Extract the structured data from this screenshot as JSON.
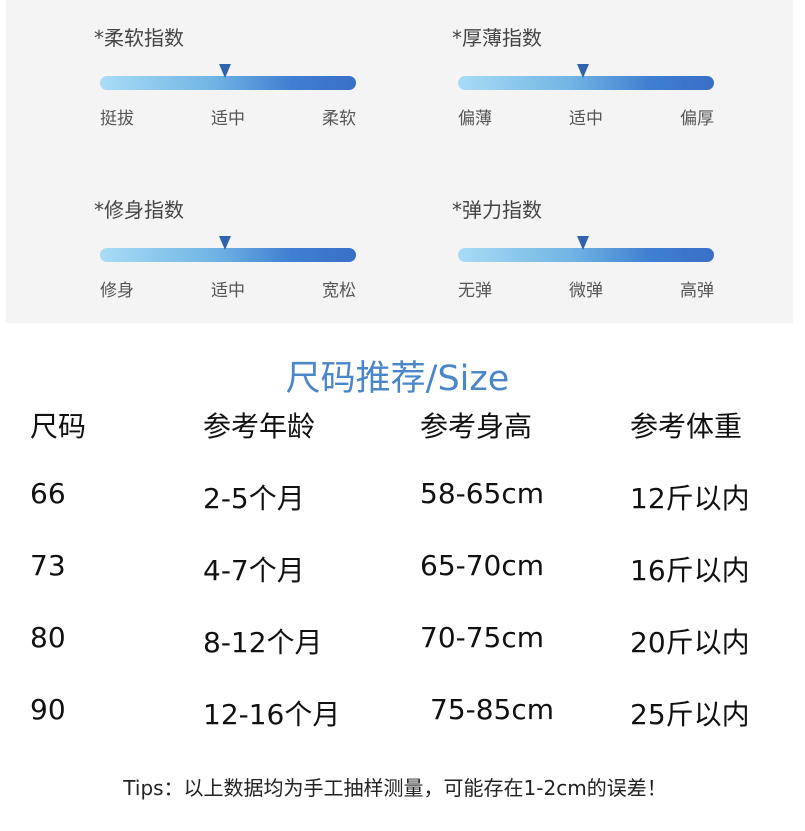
{
  "indices": [
    {
      "title": "*柔软指数",
      "labels": [
        "挺拔",
        "适中",
        "柔软"
      ],
      "pointer_level": 0.49
    },
    {
      "title": "*厚薄指数",
      "labels": [
        "偏薄",
        "适中",
        "偏厚"
      ],
      "pointer_level": 0.49
    },
    {
      "title": "*修身指数",
      "labels": [
        "修身",
        "适中",
        "宽松"
      ],
      "pointer_level": 0.49
    },
    {
      "title": "*弹力指数",
      "labels": [
        "无弹",
        "微弹",
        "高弹"
      ],
      "pointer_level": 0.49
    }
  ],
  "size_table": {
    "title": "尺码推荐/Size",
    "headers": [
      "尺码",
      "参考年龄",
      "参考身高",
      "参考体重"
    ],
    "rows": [
      [
        "66",
        "2-5个月",
        "58-65cm",
        "12斤以内"
      ],
      [
        "73",
        "4-7个月",
        "65-70cm",
        "16斤以内"
      ],
      [
        "80",
        "8-12个月",
        "70-75cm",
        "20斤以内"
      ],
      [
        "90",
        "12-16个月",
        "75-85cm",
        "25斤以内"
      ]
    ]
  },
  "tips": "Tips：以上数据均为手工抽样测量，可能存在1-2cm的误差！"
}
